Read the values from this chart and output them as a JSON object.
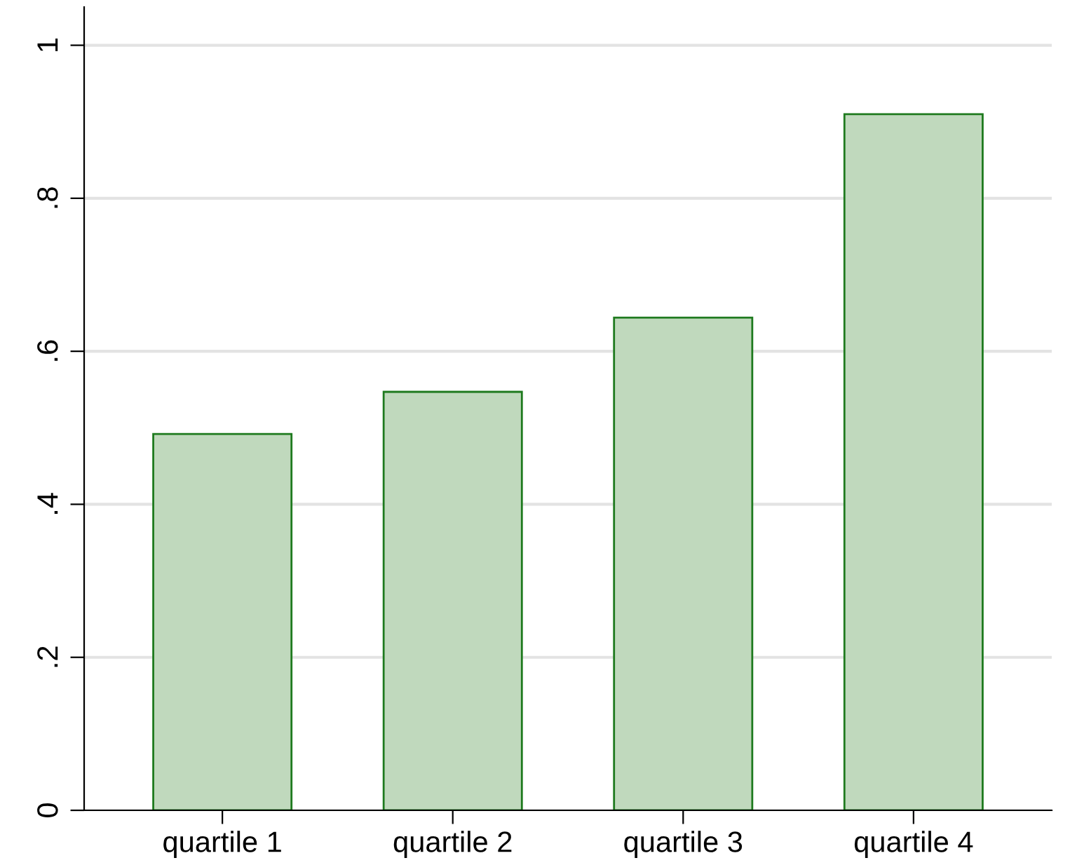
{
  "chart_data": {
    "type": "bar",
    "categories": [
      "quartile 1",
      "quartile 2",
      "quartile 3",
      "quartile 4"
    ],
    "values": [
      0.492,
      0.547,
      0.644,
      0.91
    ],
    "color": "#c0d9bd",
    "ylim": [
      0,
      1.05
    ],
    "yticks": [
      {
        "value": 0,
        "label": "0"
      },
      {
        "value": 0.2,
        "label": ".2"
      },
      {
        "value": 0.4,
        "label": ".4"
      },
      {
        "value": 0.6,
        "label": ".6"
      },
      {
        "value": 0.8,
        "label": ".8"
      },
      {
        "value": 1,
        "label": "1"
      }
    ],
    "grid": "y"
  }
}
